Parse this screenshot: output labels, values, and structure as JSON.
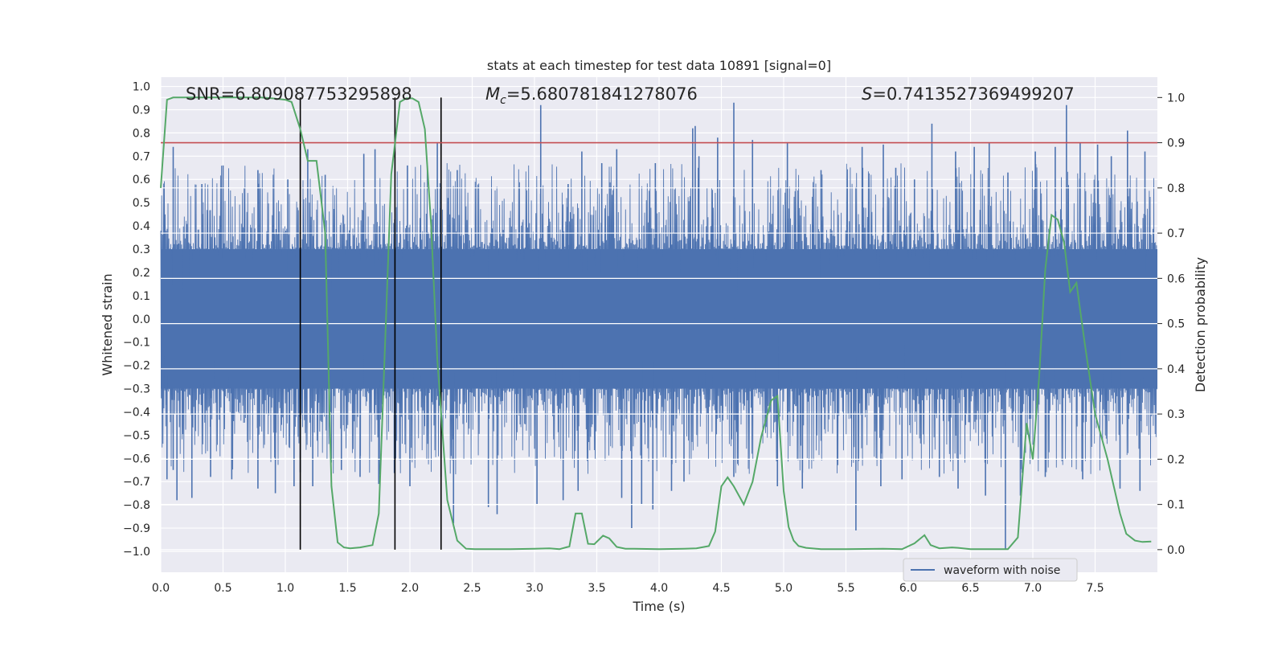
{
  "chart_data": {
    "type": "line",
    "title": "stats at each timestep for test data 10891 [signal=0]",
    "xlabel": "Time (s)",
    "ylabel_left": "Whitened strain",
    "ylabel_right": "Detection probability",
    "xlim": [
      0.0,
      8.0
    ],
    "ylim_left": [
      -1.09,
      1.04
    ],
    "ylim_right": [
      -0.05,
      1.045
    ],
    "x_ticks": [
      0.0,
      0.5,
      1.0,
      1.5,
      2.0,
      2.5,
      3.0,
      3.5,
      4.0,
      4.5,
      5.0,
      5.5,
      6.0,
      6.5,
      7.0,
      7.5
    ],
    "x_tick_labels": [
      "0.0",
      "0.5",
      "1.0",
      "1.5",
      "2.0",
      "2.5",
      "3.0",
      "3.5",
      "4.0",
      "4.5",
      "5.0",
      "5.5",
      "6.0",
      "6.5",
      "7.0",
      "7.5"
    ],
    "y_left_ticks": [
      1.0,
      0.9,
      0.8,
      0.7,
      0.6,
      0.5,
      0.4,
      0.3,
      0.2,
      0.1,
      0.0,
      -0.1,
      -0.2,
      -0.3,
      -0.4,
      -0.5,
      -0.6,
      -0.7,
      -0.8,
      -0.9,
      -1.0
    ],
    "y_left_tick_labels": [
      "1.0",
      "0.9",
      "0.8",
      "0.7",
      "0.6",
      "0.5",
      "0.4",
      "0.3",
      "0.2",
      "0.1",
      "0.0",
      "−0.1",
      "−0.2",
      "−0.3",
      "−0.4",
      "−0.5",
      "−0.6",
      "−0.7",
      "−0.8",
      "−0.9",
      "−1.0"
    ],
    "y_right_ticks": [
      1.0,
      0.9,
      0.8,
      0.7,
      0.6,
      0.5,
      0.4,
      0.3,
      0.2,
      0.1,
      0.0
    ],
    "y_right_tick_labels": [
      "1.0",
      "0.9",
      "0.8",
      "0.7",
      "0.6",
      "0.5",
      "0.4",
      "0.3",
      "0.2",
      "0.1",
      "0.0"
    ],
    "annotations": {
      "snr": "SNR=6.809087753295898",
      "mc_symbol": "M",
      "mc_subscript": "c",
      "mc_value": "=5.680781841278076",
      "s_symbol": "S",
      "s_value": "=0.7413527369499207"
    },
    "threshold": {
      "value": 0.9,
      "axis": "right",
      "color": "#c44e52"
    },
    "vertical_lines": [
      1.12,
      1.88,
      2.25
    ],
    "waveform": {
      "name": "waveform with noise",
      "color": "#4c72b0",
      "core_amplitude": 0.3,
      "typical_peak": 0.55,
      "spikes": [
        [
          0.1,
          0.74
        ],
        [
          0.33,
          0.58
        ],
        [
          0.5,
          0.66
        ],
        [
          0.78,
          0.64
        ],
        [
          1.02,
          0.6
        ],
        [
          1.18,
          0.73
        ],
        [
          1.32,
          0.62
        ],
        [
          1.63,
          0.71
        ],
        [
          1.72,
          0.73
        ],
        [
          1.98,
          0.66
        ],
        [
          2.22,
          0.76
        ],
        [
          2.38,
          0.64
        ],
        [
          3.05,
          0.92
        ],
        [
          3.27,
          0.58
        ],
        [
          3.38,
          0.72
        ],
        [
          3.54,
          0.67
        ],
        [
          3.66,
          0.73
        ],
        [
          3.97,
          0.67
        ],
        [
          4.27,
          0.82
        ],
        [
          4.29,
          0.83
        ],
        [
          4.32,
          0.7
        ],
        [
          4.47,
          0.78
        ],
        [
          4.6,
          0.93
        ],
        [
          4.75,
          0.77
        ],
        [
          5.03,
          0.76
        ],
        [
          5.3,
          0.64
        ],
        [
          5.63,
          0.74
        ],
        [
          5.8,
          0.75
        ],
        [
          5.9,
          0.65
        ],
        [
          6.05,
          0.6
        ],
        [
          6.19,
          0.84
        ],
        [
          6.38,
          0.72
        ],
        [
          6.53,
          0.74
        ],
        [
          6.65,
          0.76
        ],
        [
          6.8,
          0.63
        ],
        [
          7.02,
          0.72
        ],
        [
          7.18,
          0.74
        ],
        [
          7.27,
          0.92
        ],
        [
          7.38,
          0.76
        ],
        [
          7.52,
          0.75
        ],
        [
          7.63,
          0.7
        ],
        [
          7.76,
          0.81
        ],
        [
          7.9,
          0.72
        ],
        [
          0.05,
          -0.69
        ],
        [
          0.1,
          -0.65
        ],
        [
          0.13,
          -0.78
        ],
        [
          0.25,
          -0.77
        ],
        [
          0.4,
          -0.68
        ],
        [
          0.57,
          -0.69
        ],
        [
          0.78,
          -0.73
        ],
        [
          0.92,
          -0.75
        ],
        [
          1.07,
          -0.72
        ],
        [
          1.12,
          -0.66
        ],
        [
          1.22,
          -0.72
        ],
        [
          1.45,
          -0.65
        ],
        [
          1.6,
          -0.68
        ],
        [
          1.75,
          -0.71
        ],
        [
          2.0,
          -0.72
        ],
        [
          2.25,
          -0.68
        ],
        [
          2.35,
          -0.88
        ],
        [
          2.63,
          -0.81
        ],
        [
          2.7,
          -0.84
        ],
        [
          3.02,
          -0.8
        ],
        [
          3.23,
          -0.78
        ],
        [
          3.35,
          -0.74
        ],
        [
          3.7,
          -0.77
        ],
        [
          3.78,
          -0.9
        ],
        [
          3.86,
          -0.8
        ],
        [
          3.95,
          -0.82
        ],
        [
          4.1,
          -0.74
        ],
        [
          4.2,
          -0.7
        ],
        [
          4.6,
          -0.68
        ],
        [
          4.95,
          -0.72
        ],
        [
          5.15,
          -0.73
        ],
        [
          5.58,
          -0.91
        ],
        [
          5.78,
          -0.72
        ],
        [
          5.95,
          -0.69
        ],
        [
          6.25,
          -0.68
        ],
        [
          6.4,
          -0.73
        ],
        [
          6.62,
          -0.76
        ],
        [
          6.78,
          -0.99
        ],
        [
          6.9,
          -0.76
        ],
        [
          7.1,
          -0.68
        ],
        [
          7.4,
          -0.69
        ],
        [
          7.7,
          -0.73
        ],
        [
          7.86,
          -0.74
        ]
      ]
    },
    "probability": {
      "axis": "right",
      "color": "#55a868",
      "x": [
        0.0,
        0.05,
        0.1,
        0.2,
        0.4,
        0.6,
        0.8,
        0.9,
        1.0,
        1.05,
        1.12,
        1.18,
        1.25,
        1.32,
        1.37,
        1.42,
        1.47,
        1.52,
        1.6,
        1.7,
        1.75,
        1.8,
        1.85,
        1.92,
        1.97,
        2.02,
        2.07,
        2.12,
        2.17,
        2.22,
        2.3,
        2.38,
        2.45,
        2.52,
        2.6,
        2.8,
        3.0,
        3.12,
        3.2,
        3.28,
        3.33,
        3.38,
        3.43,
        3.48,
        3.55,
        3.6,
        3.66,
        3.73,
        3.8,
        4.0,
        4.2,
        4.3,
        4.4,
        4.45,
        4.5,
        4.55,
        4.6,
        4.68,
        4.75,
        4.82,
        4.9,
        4.95,
        5.0,
        5.04,
        5.08,
        5.12,
        5.18,
        5.3,
        5.5,
        5.8,
        5.95,
        6.05,
        6.13,
        6.18,
        6.25,
        6.35,
        6.4,
        6.5,
        6.7,
        6.8,
        6.88,
        6.95,
        7.0,
        7.05,
        7.1,
        7.15,
        7.2,
        7.25,
        7.3,
        7.35,
        7.42,
        7.5,
        7.6,
        7.7,
        7.75,
        7.82,
        7.88,
        7.95
      ],
      "y": [
        0.8,
        0.995,
        1.0,
        1.0,
        1.0,
        1.0,
        1.0,
        0.998,
        0.995,
        0.99,
        0.93,
        0.86,
        0.86,
        0.7,
        0.14,
        0.016,
        0.005,
        0.003,
        0.005,
        0.01,
        0.08,
        0.45,
        0.83,
        0.99,
        0.998,
        0.998,
        0.99,
        0.93,
        0.72,
        0.42,
        0.11,
        0.02,
        0.002,
        0.001,
        0.001,
        0.001,
        0.002,
        0.003,
        0.001,
        0.007,
        0.08,
        0.08,
        0.013,
        0.012,
        0.031,
        0.025,
        0.006,
        0.002,
        0.002,
        0.001,
        0.002,
        0.003,
        0.008,
        0.04,
        0.14,
        0.16,
        0.14,
        0.1,
        0.15,
        0.25,
        0.33,
        0.34,
        0.13,
        0.05,
        0.02,
        0.008,
        0.004,
        0.001,
        0.001,
        0.002,
        0.001,
        0.014,
        0.032,
        0.01,
        0.003,
        0.005,
        0.004,
        0.001,
        0.001,
        0.001,
        0.027,
        0.28,
        0.2,
        0.38,
        0.62,
        0.74,
        0.73,
        0.68,
        0.57,
        0.59,
        0.45,
        0.3,
        0.2,
        0.08,
        0.035,
        0.02,
        0.017,
        0.018
      ]
    },
    "legend": {
      "entries": [
        "waveform with noise"
      ],
      "location": "lower-center-right"
    },
    "grid": true,
    "colors": {
      "background": "#eaeaf2",
      "grid": "#ffffff",
      "vertical_lines": "#000000"
    }
  }
}
